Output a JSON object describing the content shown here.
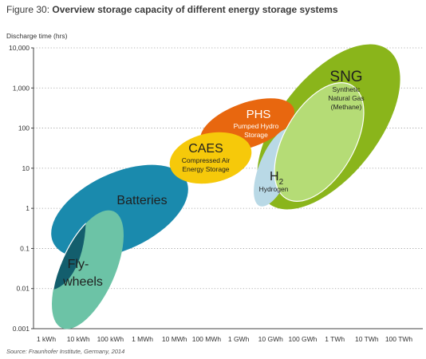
{
  "figure": {
    "label": "Figure 30:",
    "title": "Overview storage capacity of different energy storage systems",
    "source": "Source: Fraunhofer Institute, Germany, 2014"
  },
  "chart_data": {
    "type": "scatter",
    "title": "Overview storage capacity of different energy storage systems",
    "ylabel": "Discharge time (hrs)",
    "xlabel": "",
    "x_scale": "log",
    "y_scale": "log",
    "x_ticks": [
      "1 kWh",
      "10 kWh",
      "100 kWh",
      "1 MWh",
      "10 MWh",
      "100 MWh",
      "1 GWh",
      "10 GWh",
      "100 GWh",
      "1 TWh",
      "10 TWh",
      "100 TWh"
    ],
    "y_ticks": [
      "10,000",
      "1,000",
      "100",
      "10",
      "1",
      "0.1",
      "0.01",
      "0.001"
    ],
    "grid": "dotted horizontal",
    "regions": [
      {
        "name": "SNG",
        "sub": [
          "Synthetic",
          "Natural Gas",
          "(Methane)"
        ],
        "color": "#8ab51b",
        "x_range": [
          "1 GWh",
          "10 TWh"
        ],
        "y_range": [
          1,
          10000
        ]
      },
      {
        "name": "Batteries",
        "sub": [],
        "color": "#1a8aad",
        "x_range": [
          "1 kWh",
          "10 MWh"
        ],
        "y_range": [
          0.02,
          20
        ]
      },
      {
        "name": "Fly-wheels",
        "sub": [],
        "color": "#6cc3a6",
        "x_range": [
          "1 kWh",
          "100 kWh"
        ],
        "y_range": [
          0.001,
          0.5
        ]
      },
      {
        "name": "PHS",
        "sub": [
          "Pumped Hydro",
          "Storage"
        ],
        "color": "#e8670f",
        "x_range": [
          "10 MWh",
          "10 GWh"
        ],
        "y_range": [
          20,
          400
        ]
      },
      {
        "name": "CAES",
        "sub": [
          "Compressed Air",
          "Energy Storage"
        ],
        "color": "#f6c90a",
        "x_range": [
          "10 MWh",
          "1 GWh"
        ],
        "y_range": [
          5,
          100
        ]
      },
      {
        "name": "H",
        "sub_script": "2",
        "sub": [
          "Hydrogen"
        ],
        "color": "#b9d9e6",
        "x_range": [
          "1 GWh",
          "100 GWh"
        ],
        "y_range": [
          1,
          100
        ]
      },
      {
        "name": "",
        "sub": [],
        "color": "#b5dc76",
        "x_range": [
          "10 GWh",
          "1 TWh"
        ],
        "y_range": [
          1,
          1000
        ]
      }
    ]
  }
}
